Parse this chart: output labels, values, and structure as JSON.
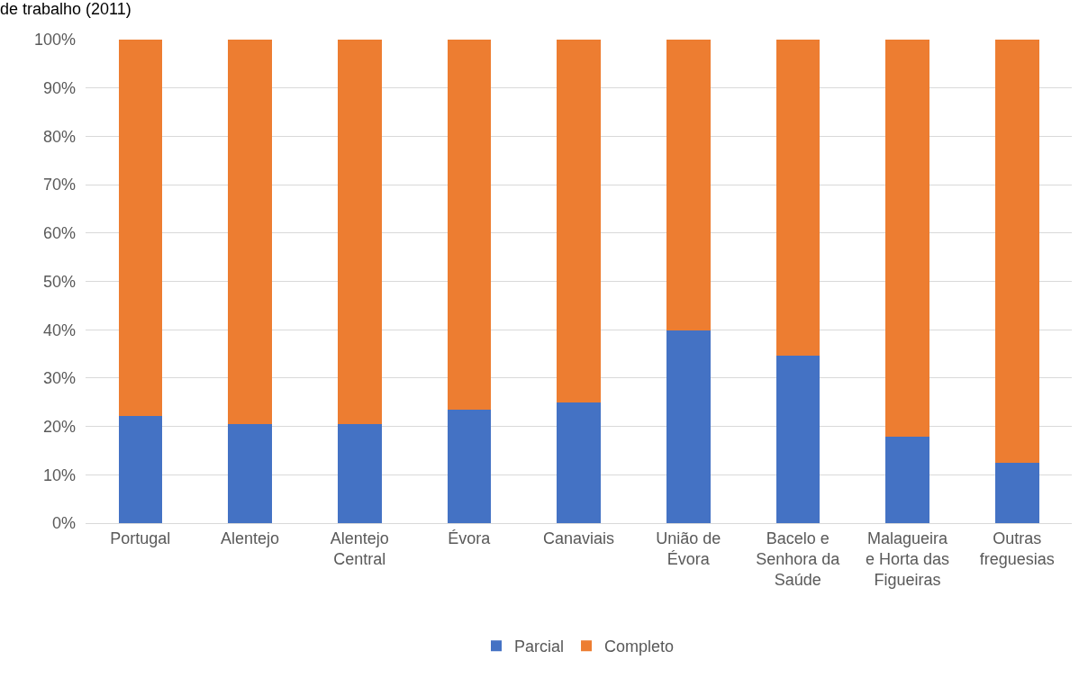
{
  "chart_data": {
    "type": "bar",
    "title": "de trabalho (2011)",
    "stacked": true,
    "categories": [
      "Portugal",
      "Alentejo",
      "Alentejo Central",
      "Évora",
      "Canaviais",
      "União de Évora",
      "Bacelo e Senhora da Saúde",
      "Malagueira e Horta das Figueiras",
      "Outras freguesias"
    ],
    "series": [
      {
        "name": "Parcial",
        "color": "#4472c4",
        "values": [
          22.2,
          20.5,
          20.5,
          23.5,
          25,
          39.9,
          34.6,
          17.9,
          12.5
        ]
      },
      {
        "name": "Completo",
        "color": "#ed7d31",
        "values": [
          77.8,
          79.5,
          79.5,
          76.5,
          75,
          60.1,
          65.4,
          82.1,
          87.5
        ]
      }
    ],
    "ylim": [
      0,
      100
    ],
    "yticks": [
      {
        "value": 0,
        "label": "0%"
      },
      {
        "value": 10,
        "label": "10%"
      },
      {
        "value": 20,
        "label": "20%"
      },
      {
        "value": 30,
        "label": "30%"
      },
      {
        "value": 40,
        "label": "40%"
      },
      {
        "value": 50,
        "label": "50%"
      },
      {
        "value": 60,
        "label": "60%"
      },
      {
        "value": 70,
        "label": "70%"
      },
      {
        "value": 80,
        "label": "80%"
      },
      {
        "value": 90,
        "label": "90%"
      },
      {
        "value": 100,
        "label": "100%"
      }
    ],
    "grid": "y",
    "legend": "bottom"
  }
}
